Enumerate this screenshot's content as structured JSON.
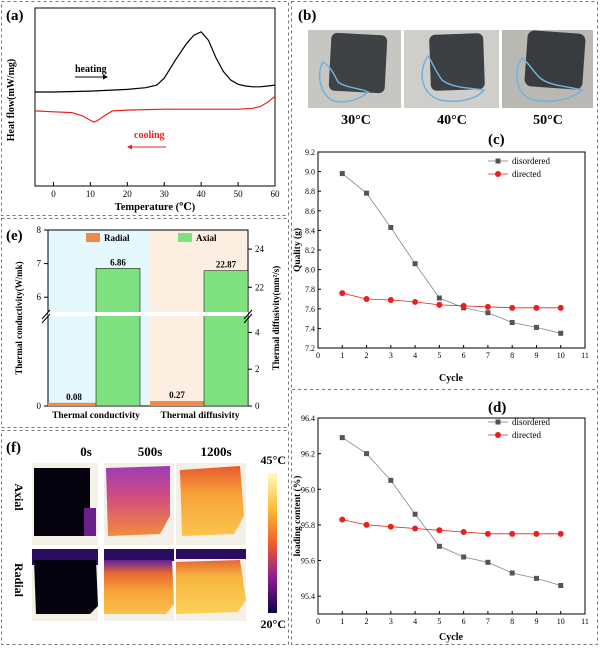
{
  "panels": {
    "a": {
      "label": "(a)"
    },
    "b": {
      "label": "(b)"
    },
    "c": {
      "label": "(c)"
    },
    "d": {
      "label": "(d)"
    },
    "e": {
      "label": "(e)"
    },
    "f": {
      "label": "(f)"
    }
  },
  "colors": {
    "black_series": "#000000",
    "red_series": "#e8211d",
    "radial": "#ef8a4a",
    "axial": "#7fe07f",
    "shade_left": "#e4f8fd",
    "shade_right": "#fdeee2",
    "grey_marker": "#555555",
    "red_marker": "#e8211d"
  },
  "panel_b": {
    "captions": [
      "30°C",
      "40°C",
      "50°C"
    ]
  },
  "panel_f": {
    "times": [
      "0s",
      "500s",
      "1200s"
    ],
    "rows": [
      "Axial",
      "Radial"
    ],
    "scale_max": "45°C",
    "scale_min": "20°C"
  },
  "chart_data": [
    {
      "id": "a",
      "type": "line",
      "title": "",
      "xlabel": "Temperature (℃)",
      "ylabel": "Heat flow(mW/mg)",
      "xlim": [
        -5,
        60
      ],
      "xticks": [
        0,
        10,
        20,
        30,
        40,
        50,
        60
      ],
      "annotations": [
        "heating",
        "cooling"
      ],
      "series": [
        {
          "name": "heating",
          "color": "#000000",
          "x": [
            -5,
            0,
            10,
            20,
            25,
            28,
            30,
            33,
            36,
            38,
            40,
            42,
            44,
            46,
            48,
            50,
            52,
            54,
            56,
            58,
            60
          ],
          "y": [
            0.0,
            0.0,
            0.01,
            0.03,
            0.05,
            0.08,
            0.16,
            0.37,
            0.56,
            0.66,
            0.7,
            0.6,
            0.4,
            0.24,
            0.14,
            0.09,
            0.07,
            0.06,
            0.06,
            0.07,
            0.08
          ]
        },
        {
          "name": "cooling",
          "color": "#e8211d",
          "x": [
            -5,
            0,
            5,
            8,
            10,
            11,
            12,
            14,
            16,
            20,
            30,
            40,
            50,
            54,
            56,
            58,
            60
          ],
          "y": [
            -0.22,
            -0.23,
            -0.24,
            -0.28,
            -0.33,
            -0.35,
            -0.33,
            -0.27,
            -0.22,
            -0.21,
            -0.2,
            -0.2,
            -0.2,
            -0.19,
            -0.17,
            -0.12,
            -0.05
          ]
        }
      ]
    },
    {
      "id": "c",
      "type": "line",
      "title": "",
      "xlabel": "Cycle",
      "ylabel": "Quality (g)",
      "xlim": [
        0,
        11
      ],
      "ylim": [
        7.2,
        9.2
      ],
      "xticks": [
        0,
        1,
        2,
        3,
        4,
        5,
        6,
        7,
        8,
        9,
        10,
        11
      ],
      "yticks": [
        7.2,
        7.4,
        7.6,
        7.8,
        8.0,
        8.2,
        8.4,
        8.6,
        8.8,
        9.0,
        9.2
      ],
      "x": [
        1,
        2,
        3,
        4,
        5,
        6,
        7,
        8,
        9,
        10
      ],
      "series": [
        {
          "name": "disordered",
          "values": [
            8.98,
            8.78,
            8.43,
            8.06,
            7.71,
            7.61,
            7.56,
            7.46,
            7.41,
            7.35
          ]
        },
        {
          "name": "directed",
          "values": [
            7.76,
            7.7,
            7.69,
            7.67,
            7.64,
            7.63,
            7.62,
            7.61,
            7.61,
            7.61
          ]
        }
      ],
      "legend": "top-right"
    },
    {
      "id": "d",
      "type": "line",
      "title": "",
      "xlabel": "Cycle",
      "ylabel": "loading content (%)",
      "xlim": [
        0,
        11
      ],
      "ylim": [
        95.3,
        96.4
      ],
      "xticks": [
        0,
        1,
        2,
        3,
        4,
        5,
        6,
        7,
        8,
        9,
        10,
        11
      ],
      "yticks": [
        95.4,
        95.6,
        95.8,
        96.0,
        96.2,
        96.4
      ],
      "x": [
        1,
        2,
        3,
        4,
        5,
        6,
        7,
        8,
        9,
        10
      ],
      "series": [
        {
          "name": "disordered",
          "values": [
            96.29,
            96.2,
            96.05,
            95.86,
            95.68,
            95.62,
            95.59,
            95.53,
            95.5,
            95.46
          ]
        },
        {
          "name": "directed",
          "values": [
            95.83,
            95.8,
            95.79,
            95.78,
            95.77,
            95.76,
            95.75,
            95.75,
            95.75,
            95.75
          ]
        }
      ],
      "legend": "top-right"
    },
    {
      "id": "e",
      "type": "bar",
      "title": "",
      "ylabel_left": "Thermal conductivity(W/mk)",
      "ylabel_right": "Thermal diffusivity(mm²/s)",
      "categories": [
        "Thermal conductivity",
        "Thermal diffusivity"
      ],
      "legend": [
        "Radial",
        "Axial"
      ],
      "left_ticks_lower": [
        "0"
      ],
      "left_ticks_upper": [
        "6",
        "7",
        "8"
      ],
      "right_ticks_lower": [
        "0",
        "2",
        "4"
      ],
      "right_ticks_upper": [
        "22",
        "24"
      ],
      "series": [
        {
          "name": "Radial",
          "values": [
            0.08,
            0.27
          ],
          "labels": [
            "0.08",
            "0.27"
          ]
        },
        {
          "name": "Axial",
          "values": [
            6.86,
            22.87
          ],
          "labels": [
            "6.86",
            "22.87"
          ]
        }
      ]
    }
  ]
}
